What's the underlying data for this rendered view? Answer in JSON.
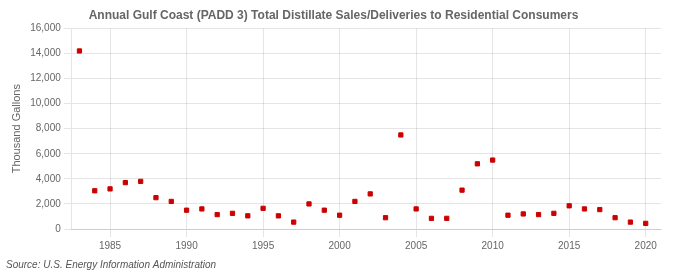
{
  "chart_data": {
    "type": "scatter",
    "title": "Annual Gulf Coast (PADD 3) Total Distillate Sales/Deliveries to Residential Consumers",
    "ylabel": "Thousand Gallons",
    "source": "Source: U.S. Energy Information Administration",
    "x": [
      1983,
      1984,
      1985,
      1986,
      1987,
      1988,
      1989,
      1990,
      1991,
      1992,
      1993,
      1994,
      1995,
      1996,
      1997,
      1998,
      1999,
      2000,
      2001,
      2002,
      2003,
      2004,
      2005,
      2006,
      2007,
      2008,
      2009,
      2010,
      2011,
      2012,
      2013,
      2014,
      2015,
      2016,
      2017,
      2018,
      2019,
      2020
    ],
    "values": [
      14200,
      3050,
      3200,
      3700,
      3800,
      2500,
      2200,
      1500,
      1600,
      1150,
      1250,
      1050,
      1650,
      1050,
      550,
      2000,
      1500,
      1100,
      2200,
      2800,
      900,
      7500,
      1600,
      850,
      850,
      3100,
      5200,
      5500,
      1100,
      1200,
      1150,
      1250,
      1850,
      1600,
      1550,
      900,
      550,
      450
    ],
    "color": "#cc0000",
    "marker": "square",
    "xlim": [
      1982.5,
      2021
    ],
    "xticks": [
      1985,
      1990,
      1995,
      2000,
      2005,
      2010,
      2015,
      2020
    ],
    "ylim": [
      0,
      16000
    ],
    "yticks": [
      0,
      {
        "value": 2000,
        "label": "2,000"
      },
      {
        "value": 4000,
        "label": "4,000"
      },
      {
        "value": 6000,
        "label": "6,000"
      },
      {
        "value": 8000,
        "label": "8,000"
      },
      {
        "value": 10000,
        "label": "10,000"
      },
      {
        "value": 12000,
        "label": "12,000"
      },
      {
        "value": 14000,
        "label": "14,000"
      },
      {
        "value": 16000,
        "label": "16,000"
      }
    ],
    "grid": true
  }
}
